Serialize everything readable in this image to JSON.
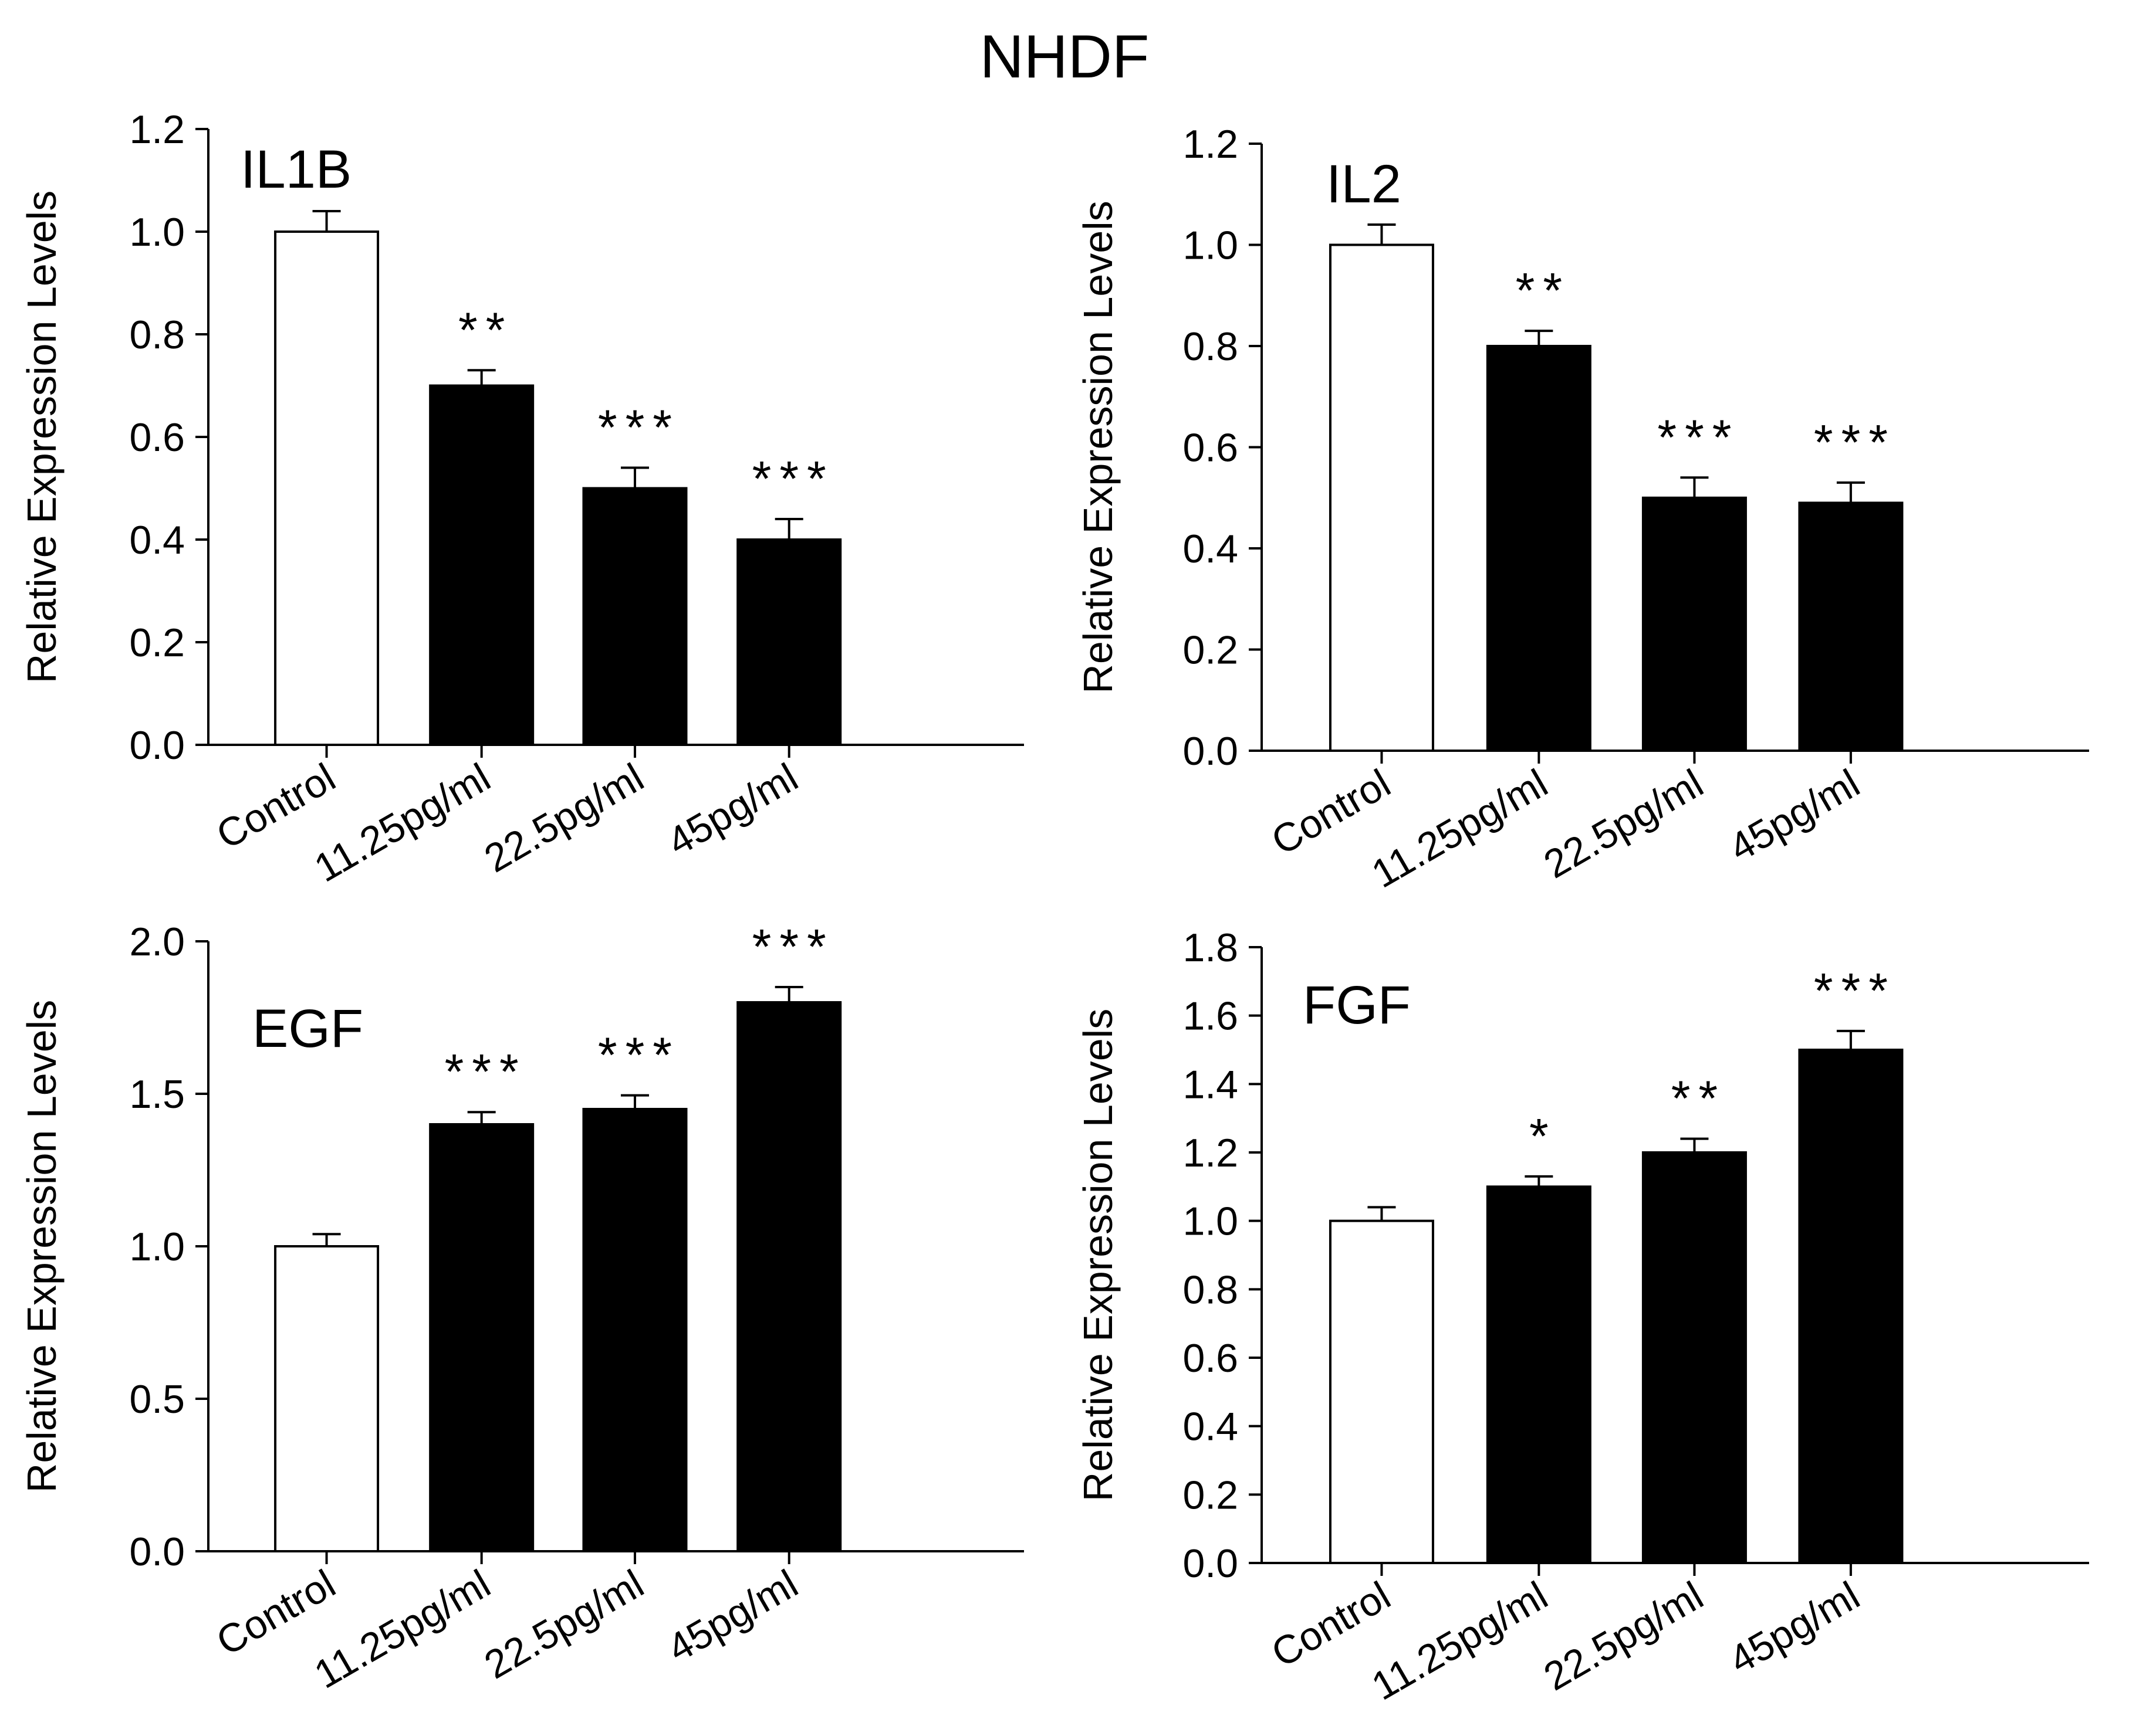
{
  "title": "NHDF",
  "chart_data": [
    {
      "type": "bar",
      "panel_label": "IL1B",
      "title": "",
      "xlabel": "",
      "ylabel": "Relative Expression Levels",
      "categories": [
        "Control",
        "11.25pg/ml",
        "22.5pg/ml",
        "45pg/ml"
      ],
      "values": [
        1.0,
        0.7,
        0.5,
        0.4
      ],
      "errors": [
        0.04,
        0.03,
        0.04,
        0.04
      ],
      "significance": [
        "",
        "**",
        "***",
        "***"
      ],
      "bar_colors": [
        "#ffffff",
        "#000000",
        "#000000",
        "#000000"
      ],
      "ylim": [
        0,
        1.2
      ],
      "yticks": [
        "0.0",
        "0.2",
        "0.4",
        "0.6",
        "0.8",
        "1.0",
        "1.2"
      ],
      "grid": false,
      "legend": "none"
    },
    {
      "type": "bar",
      "panel_label": "IL2",
      "title": "",
      "xlabel": "",
      "ylabel": "Relative Expression Levels",
      "categories": [
        "Control",
        "11.25pg/ml",
        "22.5pg/ml",
        "45pg/ml"
      ],
      "values": [
        1.0,
        0.8,
        0.5,
        0.49
      ],
      "errors": [
        0.04,
        0.03,
        0.04,
        0.04
      ],
      "significance": [
        "",
        "**",
        "***",
        "***"
      ],
      "bar_colors": [
        "#ffffff",
        "#000000",
        "#000000",
        "#000000"
      ],
      "ylim": [
        0,
        1.2
      ],
      "yticks": [
        "0.0",
        "0.2",
        "0.4",
        "0.6",
        "0.8",
        "1.0",
        "1.2"
      ],
      "grid": false,
      "legend": "none"
    },
    {
      "type": "bar",
      "panel_label": "EGF",
      "title": "",
      "xlabel": "",
      "ylabel": "Relative Expression Levels",
      "categories": [
        "Control",
        "11.25pg/ml",
        "22.5pg/ml",
        "45pg/ml"
      ],
      "values": [
        1.0,
        1.4,
        1.45,
        1.8
      ],
      "errors": [
        0.04,
        0.04,
        0.045,
        0.05
      ],
      "significance": [
        "",
        "***",
        "***",
        "***"
      ],
      "bar_colors": [
        "#ffffff",
        "#000000",
        "#000000",
        "#000000"
      ],
      "ylim": [
        0,
        2.0
      ],
      "yticks": [
        "0.0",
        "0.5",
        "1.0",
        "1.5",
        "2.0"
      ],
      "grid": false,
      "legend": "none"
    },
    {
      "type": "bar",
      "panel_label": "FGF",
      "title": "",
      "xlabel": "",
      "ylabel": "Relative Expression Levels",
      "categories": [
        "Control",
        "11.25pg/ml",
        "22.5pg/ml",
        "45pg/ml"
      ],
      "values": [
        1.0,
        1.1,
        1.2,
        1.5
      ],
      "errors": [
        0.04,
        0.03,
        0.04,
        0.055
      ],
      "significance": [
        "",
        "*",
        "**",
        "***"
      ],
      "bar_colors": [
        "#ffffff",
        "#000000",
        "#000000",
        "#000000"
      ],
      "ylim": [
        0,
        1.8
      ],
      "yticks": [
        "0.0",
        "0.2",
        "0.4",
        "0.6",
        "0.8",
        "1.0",
        "1.2",
        "1.4",
        "1.6",
        "1.8"
      ],
      "grid": false,
      "legend": "none"
    }
  ]
}
